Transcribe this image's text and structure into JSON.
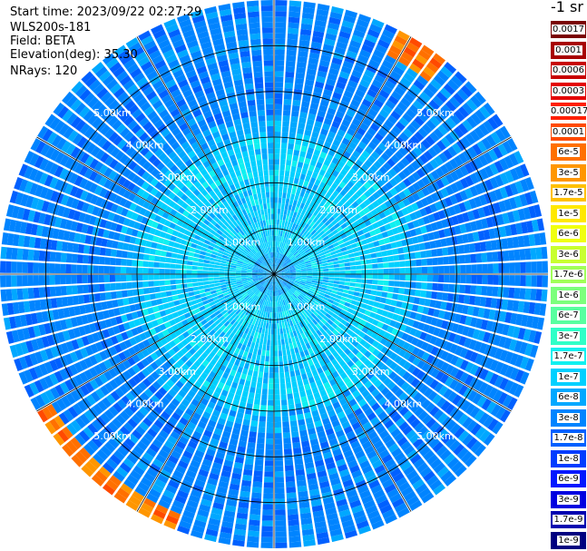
{
  "header": {
    "start_time": "Start time: 2023/09/22 02:27:29",
    "instrument": "WLS200s-181",
    "field": "Field: BETA",
    "elevation": "Elevation(deg): 35.30",
    "nrays": "NRays: 120"
  },
  "colorbar": {
    "title": "-1 sr",
    "levels": [
      {
        "label": "0.0017",
        "color": "#7a0000"
      },
      {
        "label": "0.001",
        "color": "#a80000"
      },
      {
        "label": "0.0006",
        "color": "#c80000"
      },
      {
        "label": "0.0003",
        "color": "#e40000"
      },
      {
        "label": "0.00017",
        "color": "#ff2000"
      },
      {
        "label": "0.0001",
        "color": "#ff4a00"
      },
      {
        "label": "6e-5",
        "color": "#ff7000"
      },
      {
        "label": "3e-5",
        "color": "#ff9600"
      },
      {
        "label": "1.7e-5",
        "color": "#ffc000"
      },
      {
        "label": "1e-5",
        "color": "#ffe800"
      },
      {
        "label": "6e-6",
        "color": "#f0ff10"
      },
      {
        "label": "3e-6",
        "color": "#c8ff30"
      },
      {
        "label": "1.7e-6",
        "color": "#a0ff58"
      },
      {
        "label": "1e-6",
        "color": "#7cff7c"
      },
      {
        "label": "6e-7",
        "color": "#58ffa0"
      },
      {
        "label": "3e-7",
        "color": "#30ffc8"
      },
      {
        "label": "1.7e-7",
        "color": "#10f0f0"
      },
      {
        "label": "1e-7",
        "color": "#00d0ff"
      },
      {
        "label": "6e-8",
        "color": "#00a8ff"
      },
      {
        "label": "3e-8",
        "color": "#0084ff"
      },
      {
        "label": "1.7e-8",
        "color": "#0060ff"
      },
      {
        "label": "1e-8",
        "color": "#003cff"
      },
      {
        "label": "6e-9",
        "color": "#0018ff"
      },
      {
        "label": "3e-9",
        "color": "#0000e0"
      },
      {
        "label": "1.7e-9",
        "color": "#0000b0"
      },
      {
        "label": "1e-9",
        "color": "#000080"
      }
    ]
  },
  "chart_data": {
    "type": "heatmap",
    "projection": "polar-ppi",
    "title": "",
    "n_rays": 120,
    "max_range_km": 6.0,
    "range_rings_km": [
      1,
      2,
      3,
      4,
      5
    ],
    "ring_labels": [
      "1.00km",
      "2.00km",
      "3.00km",
      "4.00km",
      "5.00km"
    ],
    "azimuth_lines_deg": [
      0,
      30,
      60,
      90,
      120,
      150,
      180,
      210,
      240,
      270,
      300,
      330
    ],
    "grid": true,
    "field": "BETA",
    "units": "sr-1",
    "log_scale": true,
    "color_range": [
      1e-09,
      0.0017
    ],
    "radial_profile": [
      {
        "range_km": 0.5,
        "level_index": 18
      },
      {
        "range_km": 1.0,
        "level_index": 17
      },
      {
        "range_km": 2.0,
        "level_index": 17
      },
      {
        "range_km": 3.0,
        "level_index": 17
      },
      {
        "range_km": 3.5,
        "level_index": 18
      },
      {
        "range_km": 4.0,
        "level_index": 19
      },
      {
        "range_km": 5.0,
        "level_index": 19
      },
      {
        "range_km": 6.0,
        "level_index": 19
      }
    ],
    "high_returns": [
      {
        "azimuth_deg_from": 200,
        "azimuth_deg_to": 240,
        "range_km_from": 5.6,
        "range_km_to": 6.0,
        "level_index": 6
      },
      {
        "azimuth_deg_from": 28,
        "azimuth_deg_to": 40,
        "range_km_from": 5.4,
        "range_km_to": 6.0,
        "level_index": 6
      }
    ]
  }
}
